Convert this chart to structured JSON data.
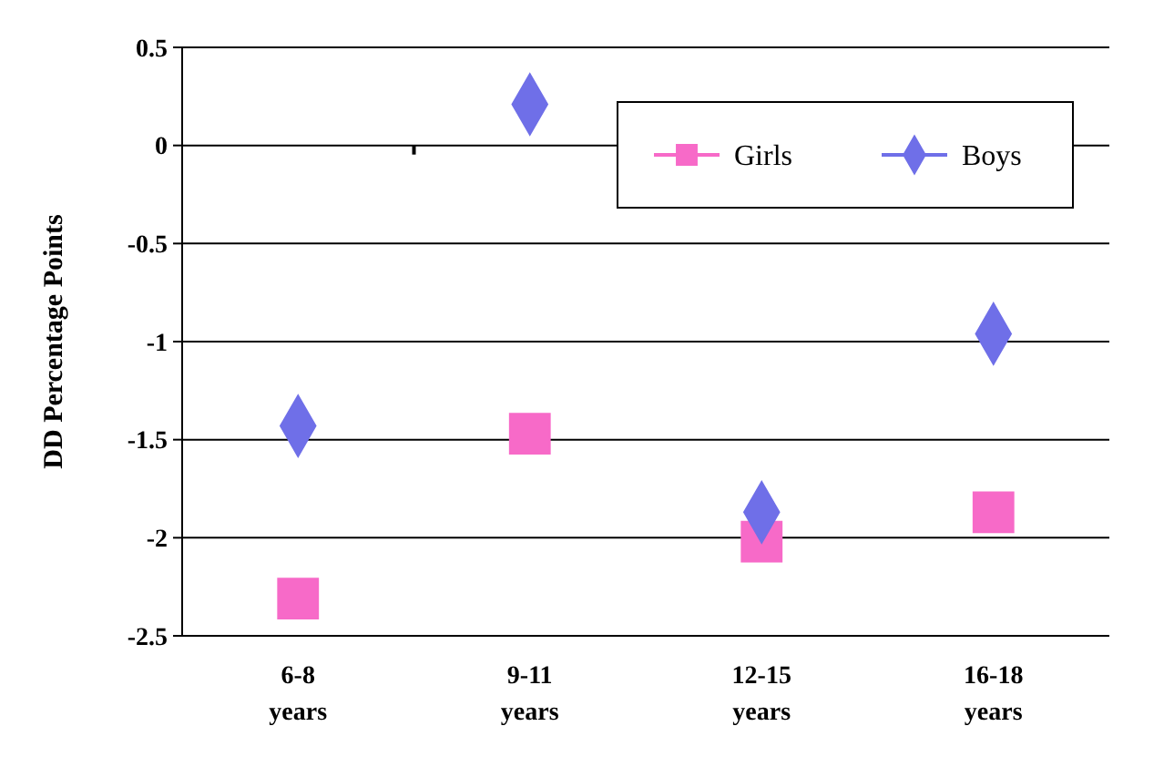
{
  "chart_data": {
    "type": "scatter",
    "ylabel": "DD Percentage Points",
    "categories": [
      "6-8 years",
      "9-11 years",
      "12-15 years",
      "16-18 years"
    ],
    "ylim": [
      -2.5,
      0.5
    ],
    "yticks": [
      -2.5,
      -2,
      -1.5,
      -1,
      -0.5,
      0,
      0.5
    ],
    "grid": "y",
    "legend": "top right",
    "series": [
      {
        "name": "Girls",
        "color": "#f76ac8",
        "marker": "square",
        "values": [
          -2.31,
          -1.47,
          -2.02,
          -1.87
        ]
      },
      {
        "name": "Boys",
        "color": "#6f6fe8",
        "marker": "diamond",
        "values": [
          -1.43,
          0.21,
          -1.87,
          -0.96
        ]
      }
    ]
  }
}
